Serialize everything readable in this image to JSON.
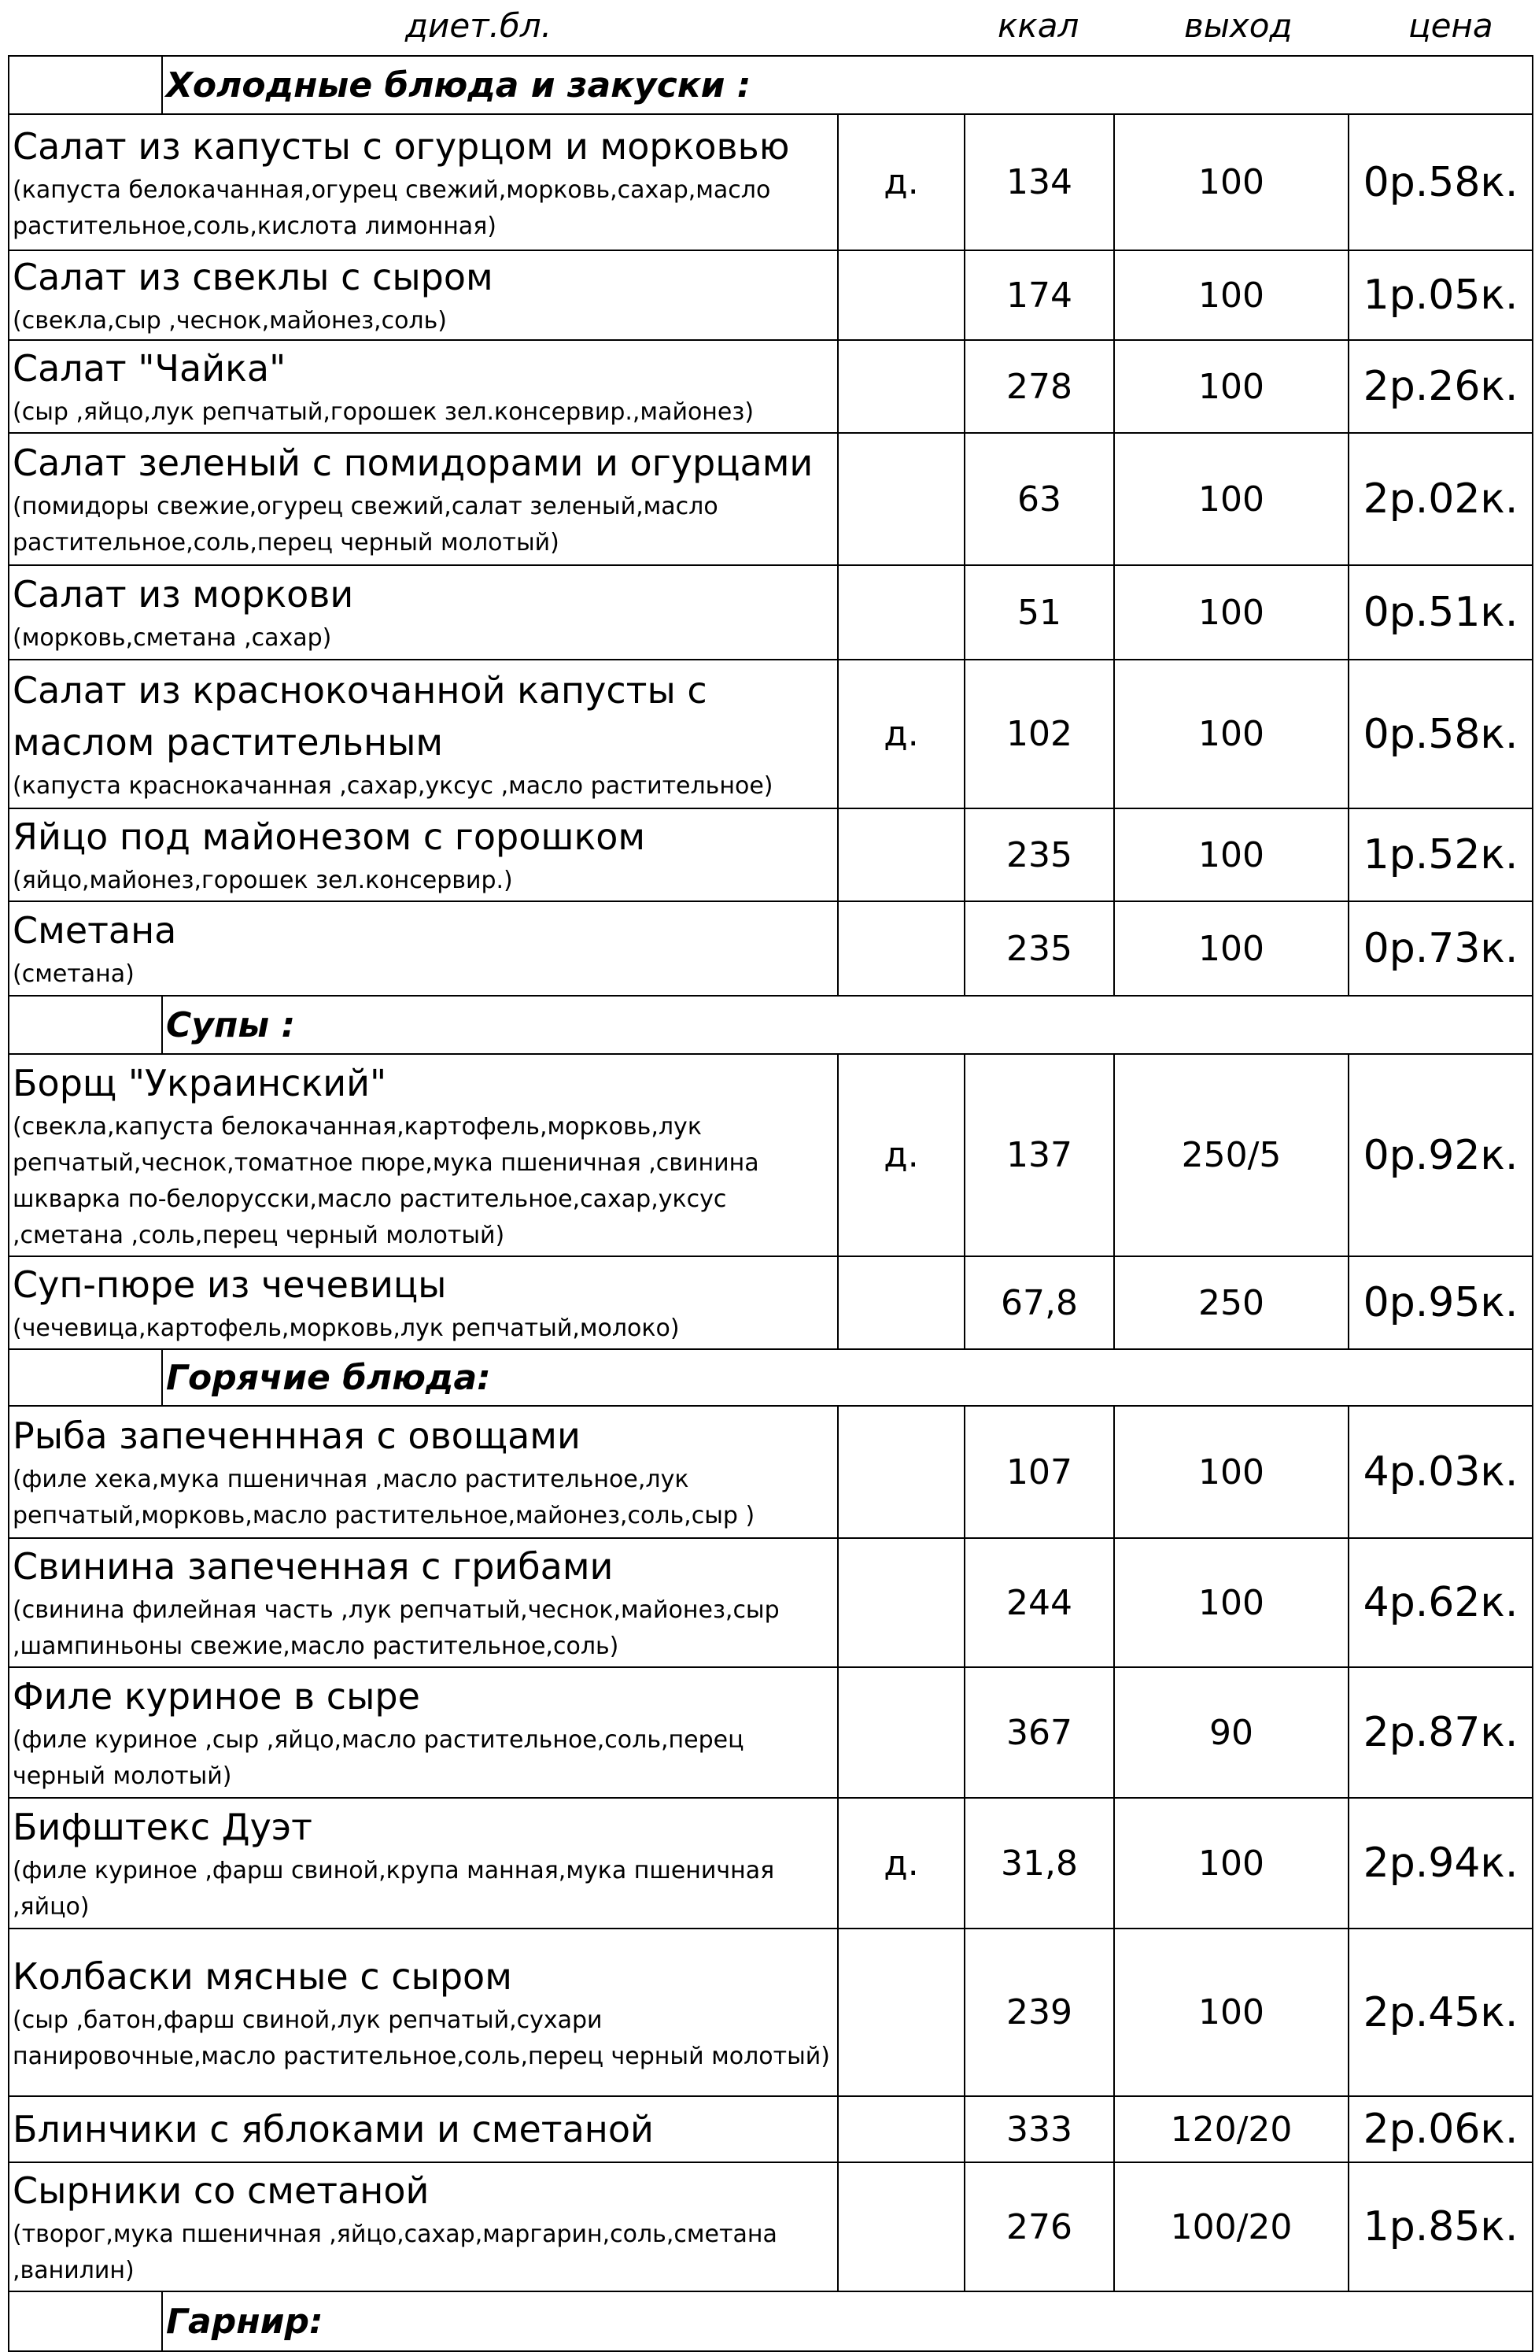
{
  "header": {
    "diet": "диет.бл.",
    "kcal": "ккал",
    "output": "выход",
    "price": "цена"
  },
  "sections": [
    {
      "title": "Холодные блюда и закуски :",
      "items": [
        {
          "name": "Салат из капусты с огурцом и морковью",
          "ingredients": "(капуста белокачанная,огурец свежий,морковь,сахар,масло растительное,соль,кислота лимонная)",
          "diet": "д.",
          "kcal": "134",
          "output": "100",
          "price": "0р.58к."
        },
        {
          "name": "Салат из свеклы с сыром",
          "ingredients": "(свекла,сыр ,чеснок,майонез,соль)",
          "diet": "",
          "kcal": "174",
          "output": "100",
          "price": "1р.05к."
        },
        {
          "name": "Салат \"Чайка\"",
          "ingredients": "(сыр ,яйцо,лук репчатый,горошек зел.консервир.,майонез)",
          "diet": "",
          "kcal": "278",
          "output": "100",
          "price": "2р.26к."
        },
        {
          "name": "Салат зеленый с помидорами и огурцами",
          "ingredients": "(помидоры свежие,огурец свежий,салат зеленый,масло растительное,соль,перец черный молотый)",
          "diet": "",
          "kcal": "63",
          "output": "100",
          "price": "2р.02к."
        },
        {
          "name": "Салат из моркови",
          "ingredients": "(морковь,сметана ,сахар)",
          "diet": "",
          "kcal": "51",
          "output": "100",
          "price": "0р.51к."
        },
        {
          "name": "Салат из краснокочанной капусты с маслом растительным",
          "ingredients": "(капуста краснокачанная ,сахар,уксус ,масло растительное)",
          "diet": "д.",
          "kcal": "102",
          "output": "100",
          "price": "0р.58к."
        },
        {
          "name": "Яйцо под майонезом с горошком",
          "ingredients": "(яйцо,майонез,горошек зел.консервир.)",
          "diet": "",
          "kcal": "235",
          "output": "100",
          "price": "1р.52к."
        },
        {
          "name": "Сметана",
          "ingredients": "(сметана)",
          "diet": "",
          "kcal": "235",
          "output": "100",
          "price": "0р.73к."
        }
      ]
    },
    {
      "title": "Супы :",
      "items": [
        {
          "name": "Борщ \"Украинский\"",
          "ingredients": "(свекла,капуста белокачанная,картофель,морковь,лук репчатый,чеснок,томатное пюре,мука пшеничная ,свинина шкварка по-белорусски,масло растительное,сахар,уксус ,сметана ,соль,перец черный молотый)",
          "diet": "д.",
          "kcal": "137",
          "output": "250/5",
          "price": "0р.92к."
        },
        {
          "name": "Суп-пюре из чечевицы",
          "ingredients": "(чечевица,картофель,морковь,лук репчатый,молоко)",
          "diet": "",
          "kcal": "67,8",
          "output": "250",
          "price": "0р.95к."
        }
      ]
    },
    {
      "title": "Горячие блюда:",
      "items": [
        {
          "name": "Рыба запеченнная  с овощами",
          "ingredients": "(филе хека,мука пшеничная ,масло растительное,лук репчатый,морковь,масло растительное,майонез,соль,сыр )",
          "diet": "",
          "kcal": "107",
          "output": "100",
          "price": "4р.03к."
        },
        {
          "name": "Свинина запеченная с грибами",
          "ingredients": "(свинина филейная часть ,лук репчатый,чеснок,майонез,сыр ,шампиньоны свежие,масло растительное,соль)",
          "diet": "",
          "kcal": "244",
          "output": "100",
          "price": "4р.62к."
        },
        {
          "name": "Филе куриное в сыре",
          "ingredients": "(филе куриное ,сыр ,яйцо,масло растительное,соль,перец черный молотый)",
          "diet": "",
          "kcal": "367",
          "output": "90",
          "price": "2р.87к."
        },
        {
          "name": "Бифштекс Дуэт",
          "ingredients": "(филе куриное ,фарш свиной,крупа манная,мука пшеничная ,яйцо)",
          "diet": "д.",
          "kcal": "31,8",
          "output": "100",
          "price": "2р.94к."
        },
        {
          "name": "Колбаски мясные с сыром",
          "ingredients": "(сыр ,батон,фарш свиной,лук репчатый,сухари панировочные,масло растительное,соль,перец черный молотый)",
          "diet": "",
          "kcal": "239",
          "output": "100",
          "price": "2р.45к."
        },
        {
          "name": "Блинчики с яблоками и сметаной",
          "ingredients": "",
          "diet": "",
          "kcal": "333",
          "output": "120/20",
          "price": "2р.06к."
        },
        {
          "name": "Сырники со сметаной",
          "ingredients": "(творог,мука пшеничная ,яйцо,сахар,маргарин,соль,сметана ,ванилин)",
          "diet": "",
          "kcal": "276",
          "output": "100/20",
          "price": "1р.85к."
        }
      ]
    },
    {
      "title": "Гарнир:",
      "items": []
    }
  ]
}
